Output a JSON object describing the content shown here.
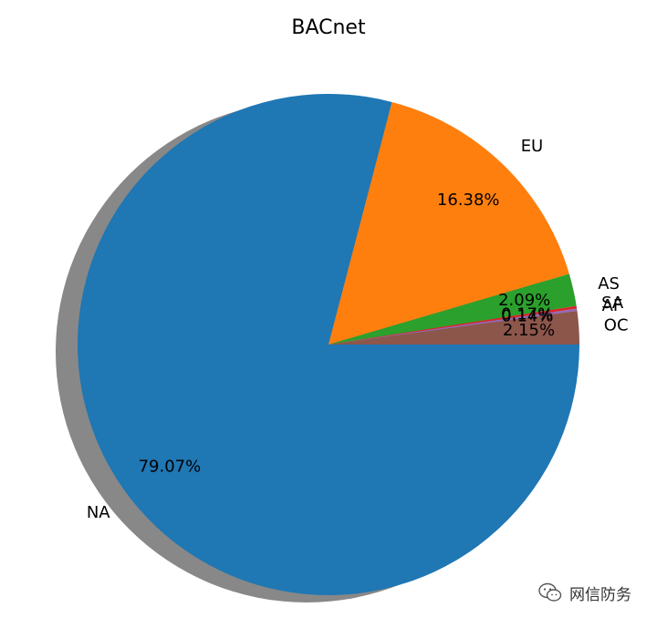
{
  "chart_data": {
    "type": "pie",
    "title": "BACnet",
    "labels": [
      "NA",
      "EU",
      "AS",
      "SA",
      "AF",
      "OC"
    ],
    "values": [
      79.07,
      16.38,
      2.09,
      0.17,
      0.14,
      2.15
    ],
    "pct_labels": [
      "79.07%",
      "16.38%",
      "2.09%",
      "0.17%",
      "0.14%",
      "2.15%"
    ],
    "colors": [
      "#1f77b4",
      "#ff7f0e",
      "#2ca02c",
      "#d62728",
      "#9467bd",
      "#8c564b"
    ],
    "start_angle_deg": 0,
    "direction": "clockwise",
    "shadow": true
  },
  "watermark": {
    "text": "网信防务",
    "icon": "wechat-chat-icon"
  }
}
